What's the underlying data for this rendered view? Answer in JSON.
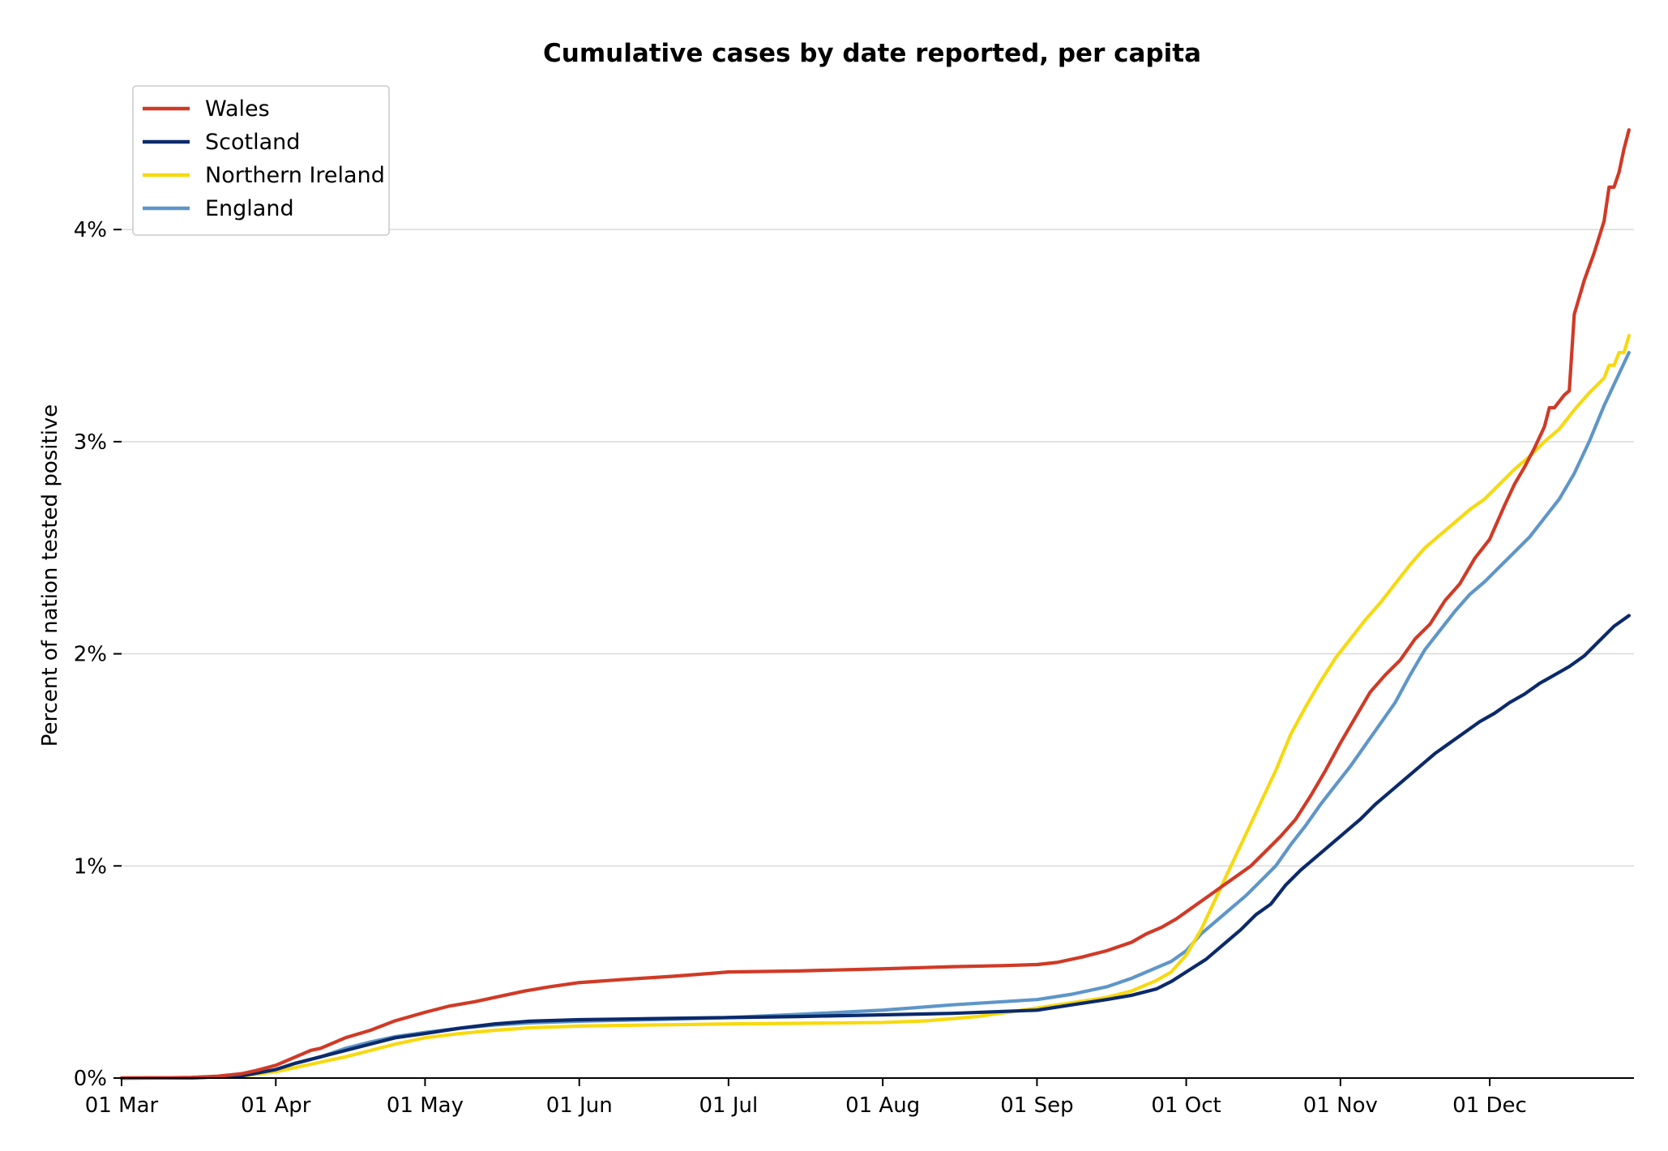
{
  "chart_data": {
    "type": "line",
    "title": "Cumulative cases by date reported, per capita",
    "ylabel": "Percent of nation tested positive",
    "xlabel": "",
    "x_axis": {
      "type": "date",
      "range": [
        "2020-03-01",
        "2020-12-30"
      ],
      "ticks": [
        {
          "date": "2020-03-01",
          "label": "01 Mar"
        },
        {
          "date": "2020-04-01",
          "label": "01 Apr"
        },
        {
          "date": "2020-05-01",
          "label": "01 May"
        },
        {
          "date": "2020-06-01",
          "label": "01 Jun"
        },
        {
          "date": "2020-07-01",
          "label": "01 Jul"
        },
        {
          "date": "2020-08-01",
          "label": "01 Aug"
        },
        {
          "date": "2020-09-01",
          "label": "01 Sep"
        },
        {
          "date": "2020-10-01",
          "label": "01 Oct"
        },
        {
          "date": "2020-11-01",
          "label": "01 Nov"
        },
        {
          "date": "2020-12-01",
          "label": "01 Dec"
        }
      ]
    },
    "y_axis": {
      "unit": "percent",
      "range": [
        0,
        4.7
      ],
      "ticks": [
        {
          "value": 0,
          "label": "0%"
        },
        {
          "value": 1,
          "label": "1%"
        },
        {
          "value": 2,
          "label": "2%"
        },
        {
          "value": 3,
          "label": "3%"
        },
        {
          "value": 4,
          "label": "4%"
        }
      ]
    },
    "grid": {
      "horizontal": true,
      "vertical": false
    },
    "legend": {
      "position": "top-left"
    },
    "series": [
      {
        "name": "Wales",
        "color": "#d03a26",
        "points": [
          [
            "2020-03-01",
            0
          ],
          [
            "2020-03-10",
            0.001
          ],
          [
            "2020-03-15",
            0.003
          ],
          [
            "2020-03-20",
            0.008
          ],
          [
            "2020-03-25",
            0.02
          ],
          [
            "2020-03-28",
            0.035
          ],
          [
            "2020-04-01",
            0.06
          ],
          [
            "2020-04-05",
            0.1
          ],
          [
            "2020-04-08",
            0.13
          ],
          [
            "2020-04-10",
            0.14
          ],
          [
            "2020-04-15",
            0.19
          ],
          [
            "2020-04-20",
            0.225
          ],
          [
            "2020-04-25",
            0.27
          ],
          [
            "2020-05-01",
            0.31
          ],
          [
            "2020-05-06",
            0.34
          ],
          [
            "2020-05-11",
            0.36
          ],
          [
            "2020-05-16",
            0.385
          ],
          [
            "2020-05-21",
            0.41
          ],
          [
            "2020-05-26",
            0.43
          ],
          [
            "2020-06-01",
            0.45
          ],
          [
            "2020-06-10",
            0.465
          ],
          [
            "2020-06-20",
            0.48
          ],
          [
            "2020-07-01",
            0.5
          ],
          [
            "2020-07-15",
            0.505
          ],
          [
            "2020-08-01",
            0.515
          ],
          [
            "2020-08-15",
            0.525
          ],
          [
            "2020-08-25",
            0.53
          ],
          [
            "2020-09-01",
            0.535
          ],
          [
            "2020-09-05",
            0.545
          ],
          [
            "2020-09-10",
            0.57
          ],
          [
            "2020-09-15",
            0.6
          ],
          [
            "2020-09-20",
            0.64
          ],
          [
            "2020-09-23",
            0.68
          ],
          [
            "2020-09-26",
            0.71
          ],
          [
            "2020-09-29",
            0.75
          ],
          [
            "2020-10-02",
            0.8
          ],
          [
            "2020-10-05",
            0.85
          ],
          [
            "2020-10-08",
            0.9
          ],
          [
            "2020-10-11",
            0.95
          ],
          [
            "2020-10-14",
            1.0
          ],
          [
            "2020-10-17",
            1.07
          ],
          [
            "2020-10-20",
            1.14
          ],
          [
            "2020-10-23",
            1.22
          ],
          [
            "2020-10-26",
            1.33
          ],
          [
            "2020-10-29",
            1.45
          ],
          [
            "2020-11-01",
            1.58
          ],
          [
            "2020-11-04",
            1.7
          ],
          [
            "2020-11-07",
            1.82
          ],
          [
            "2020-11-10",
            1.9
          ],
          [
            "2020-11-13",
            1.97
          ],
          [
            "2020-11-16",
            2.07
          ],
          [
            "2020-11-19",
            2.14
          ],
          [
            "2020-11-22",
            2.25
          ],
          [
            "2020-11-25",
            2.33
          ],
          [
            "2020-11-28",
            2.45
          ],
          [
            "2020-12-01",
            2.54
          ],
          [
            "2020-12-04",
            2.7
          ],
          [
            "2020-12-06",
            2.8
          ],
          [
            "2020-12-08",
            2.88
          ],
          [
            "2020-12-10",
            2.97
          ],
          [
            "2020-12-12",
            3.07
          ],
          [
            "2020-12-13",
            3.16
          ],
          [
            "2020-12-14",
            3.16
          ],
          [
            "2020-12-16",
            3.22
          ],
          [
            "2020-12-17",
            3.24
          ],
          [
            "2020-12-18",
            3.6
          ],
          [
            "2020-12-20",
            3.76
          ],
          [
            "2020-12-22",
            3.89
          ],
          [
            "2020-12-24",
            4.04
          ],
          [
            "2020-12-25",
            4.2
          ],
          [
            "2020-12-26",
            4.2
          ],
          [
            "2020-12-27",
            4.27
          ],
          [
            "2020-12-28",
            4.38
          ],
          [
            "2020-12-29",
            4.47
          ]
        ]
      },
      {
        "name": "Scotland",
        "color": "#0b2a6b",
        "points": [
          [
            "2020-03-01",
            0
          ],
          [
            "2020-03-15",
            0.001
          ],
          [
            "2020-03-25",
            0.01
          ],
          [
            "2020-04-01",
            0.04
          ],
          [
            "2020-04-05",
            0.07
          ],
          [
            "2020-04-10",
            0.1
          ],
          [
            "2020-04-15",
            0.13
          ],
          [
            "2020-04-20",
            0.16
          ],
          [
            "2020-04-25",
            0.19
          ],
          [
            "2020-05-01",
            0.21
          ],
          [
            "2020-05-08",
            0.235
          ],
          [
            "2020-05-15",
            0.255
          ],
          [
            "2020-05-22",
            0.268
          ],
          [
            "2020-06-01",
            0.275
          ],
          [
            "2020-06-15",
            0.28
          ],
          [
            "2020-07-01",
            0.285
          ],
          [
            "2020-07-15",
            0.29
          ],
          [
            "2020-08-01",
            0.298
          ],
          [
            "2020-08-15",
            0.305
          ],
          [
            "2020-09-01",
            0.32
          ],
          [
            "2020-09-08",
            0.345
          ],
          [
            "2020-09-15",
            0.37
          ],
          [
            "2020-09-20",
            0.39
          ],
          [
            "2020-09-25",
            0.42
          ],
          [
            "2020-09-28",
            0.455
          ],
          [
            "2020-10-01",
            0.5
          ],
          [
            "2020-10-05",
            0.56
          ],
          [
            "2020-10-09",
            0.64
          ],
          [
            "2020-10-12",
            0.7
          ],
          [
            "2020-10-15",
            0.77
          ],
          [
            "2020-10-18",
            0.82
          ],
          [
            "2020-10-21",
            0.91
          ],
          [
            "2020-10-24",
            0.98
          ],
          [
            "2020-10-27",
            1.04
          ],
          [
            "2020-10-30",
            1.1
          ],
          [
            "2020-11-02",
            1.16
          ],
          [
            "2020-11-05",
            1.22
          ],
          [
            "2020-11-08",
            1.29
          ],
          [
            "2020-11-11",
            1.35
          ],
          [
            "2020-11-14",
            1.41
          ],
          [
            "2020-11-17",
            1.47
          ],
          [
            "2020-11-20",
            1.53
          ],
          [
            "2020-11-23",
            1.58
          ],
          [
            "2020-11-26",
            1.63
          ],
          [
            "2020-11-29",
            1.68
          ],
          [
            "2020-12-02",
            1.72
          ],
          [
            "2020-12-05",
            1.77
          ],
          [
            "2020-12-08",
            1.81
          ],
          [
            "2020-12-11",
            1.86
          ],
          [
            "2020-12-14",
            1.9
          ],
          [
            "2020-12-17",
            1.94
          ],
          [
            "2020-12-20",
            1.99
          ],
          [
            "2020-12-23",
            2.06
          ],
          [
            "2020-12-26",
            2.13
          ],
          [
            "2020-12-29",
            2.18
          ]
        ]
      },
      {
        "name": "Northern Ireland",
        "color": "#f7d90f",
        "points": [
          [
            "2020-03-01",
            0
          ],
          [
            "2020-03-15",
            0.001
          ],
          [
            "2020-03-25",
            0.008
          ],
          [
            "2020-04-01",
            0.03
          ],
          [
            "2020-04-05",
            0.05
          ],
          [
            "2020-04-10",
            0.075
          ],
          [
            "2020-04-15",
            0.1
          ],
          [
            "2020-04-20",
            0.13
          ],
          [
            "2020-04-25",
            0.16
          ],
          [
            "2020-05-01",
            0.19
          ],
          [
            "2020-05-08",
            0.21
          ],
          [
            "2020-05-15",
            0.225
          ],
          [
            "2020-05-22",
            0.237
          ],
          [
            "2020-06-01",
            0.245
          ],
          [
            "2020-06-15",
            0.25
          ],
          [
            "2020-07-01",
            0.255
          ],
          [
            "2020-07-15",
            0.258
          ],
          [
            "2020-08-01",
            0.262
          ],
          [
            "2020-08-10",
            0.27
          ],
          [
            "2020-08-20",
            0.29
          ],
          [
            "2020-09-01",
            0.33
          ],
          [
            "2020-09-08",
            0.355
          ],
          [
            "2020-09-15",
            0.38
          ],
          [
            "2020-09-20",
            0.41
          ],
          [
            "2020-09-25",
            0.46
          ],
          [
            "2020-09-28",
            0.5
          ],
          [
            "2020-10-01",
            0.58
          ],
          [
            "2020-10-04",
            0.7
          ],
          [
            "2020-10-07",
            0.85
          ],
          [
            "2020-10-10",
            1.0
          ],
          [
            "2020-10-13",
            1.15
          ],
          [
            "2020-10-16",
            1.3
          ],
          [
            "2020-10-19",
            1.45
          ],
          [
            "2020-10-22",
            1.62
          ],
          [
            "2020-10-25",
            1.75
          ],
          [
            "2020-10-28",
            1.87
          ],
          [
            "2020-10-31",
            1.98
          ],
          [
            "2020-11-03",
            2.07
          ],
          [
            "2020-11-06",
            2.16
          ],
          [
            "2020-11-09",
            2.24
          ],
          [
            "2020-11-12",
            2.33
          ],
          [
            "2020-11-15",
            2.42
          ],
          [
            "2020-11-18",
            2.5
          ],
          [
            "2020-11-21",
            2.56
          ],
          [
            "2020-11-24",
            2.62
          ],
          [
            "2020-11-27",
            2.68
          ],
          [
            "2020-11-30",
            2.73
          ],
          [
            "2020-12-03",
            2.8
          ],
          [
            "2020-12-06",
            2.87
          ],
          [
            "2020-12-09",
            2.93
          ],
          [
            "2020-12-12",
            3.0
          ],
          [
            "2020-12-15",
            3.06
          ],
          [
            "2020-12-18",
            3.15
          ],
          [
            "2020-12-21",
            3.23
          ],
          [
            "2020-12-24",
            3.3
          ],
          [
            "2020-12-25",
            3.36
          ],
          [
            "2020-12-26",
            3.36
          ],
          [
            "2020-12-27",
            3.42
          ],
          [
            "2020-12-28",
            3.42
          ],
          [
            "2020-12-29",
            3.5
          ]
        ]
      },
      {
        "name": "England",
        "color": "#5e96c8",
        "points": [
          [
            "2020-03-01",
            0
          ],
          [
            "2020-03-15",
            0.001
          ],
          [
            "2020-03-25",
            0.01
          ],
          [
            "2020-04-01",
            0.04
          ],
          [
            "2020-04-05",
            0.07
          ],
          [
            "2020-04-10",
            0.1
          ],
          [
            "2020-04-15",
            0.14
          ],
          [
            "2020-04-20",
            0.17
          ],
          [
            "2020-04-25",
            0.195
          ],
          [
            "2020-05-01",
            0.215
          ],
          [
            "2020-05-08",
            0.235
          ],
          [
            "2020-05-15",
            0.25
          ],
          [
            "2020-05-22",
            0.26
          ],
          [
            "2020-06-01",
            0.268
          ],
          [
            "2020-06-15",
            0.275
          ],
          [
            "2020-07-01",
            0.285
          ],
          [
            "2020-07-15",
            0.3
          ],
          [
            "2020-08-01",
            0.32
          ],
          [
            "2020-08-15",
            0.345
          ],
          [
            "2020-09-01",
            0.37
          ],
          [
            "2020-09-08",
            0.395
          ],
          [
            "2020-09-15",
            0.43
          ],
          [
            "2020-09-20",
            0.47
          ],
          [
            "2020-09-25",
            0.52
          ],
          [
            "2020-09-28",
            0.55
          ],
          [
            "2020-10-01",
            0.6
          ],
          [
            "2020-10-04",
            0.68
          ],
          [
            "2020-10-07",
            0.74
          ],
          [
            "2020-10-10",
            0.8
          ],
          [
            "2020-10-13",
            0.86
          ],
          [
            "2020-10-16",
            0.93
          ],
          [
            "2020-10-19",
            1.0
          ],
          [
            "2020-10-22",
            1.1
          ],
          [
            "2020-10-25",
            1.19
          ],
          [
            "2020-10-28",
            1.29
          ],
          [
            "2020-10-31",
            1.38
          ],
          [
            "2020-11-03",
            1.47
          ],
          [
            "2020-11-06",
            1.57
          ],
          [
            "2020-11-09",
            1.67
          ],
          [
            "2020-11-12",
            1.77
          ],
          [
            "2020-11-15",
            1.9
          ],
          [
            "2020-11-18",
            2.02
          ],
          [
            "2020-11-21",
            2.11
          ],
          [
            "2020-11-24",
            2.2
          ],
          [
            "2020-11-27",
            2.28
          ],
          [
            "2020-11-30",
            2.34
          ],
          [
            "2020-12-03",
            2.41
          ],
          [
            "2020-12-06",
            2.48
          ],
          [
            "2020-12-09",
            2.55
          ],
          [
            "2020-12-12",
            2.64
          ],
          [
            "2020-12-15",
            2.73
          ],
          [
            "2020-12-18",
            2.85
          ],
          [
            "2020-12-21",
            3.0
          ],
          [
            "2020-12-24",
            3.17
          ],
          [
            "2020-12-27",
            3.32
          ],
          [
            "2020-12-29",
            3.42
          ]
        ]
      }
    ]
  }
}
